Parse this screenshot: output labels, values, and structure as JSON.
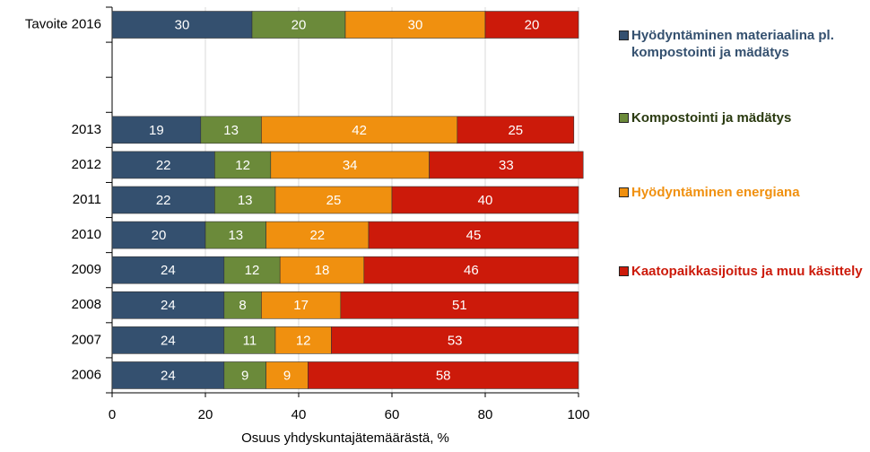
{
  "chart_data": {
    "type": "stacked-barh",
    "xlabel": "Osuus yhdyskuntajätemäärästä, %",
    "categories": [
      "Tavoite 2016",
      null,
      null,
      "2013",
      "2012",
      "2011",
      "2010",
      "2009",
      "2008",
      "2007",
      "2006"
    ],
    "series": [
      {
        "name": "Hyödyntäminen materiaalina pl. kompostointi ja mädätys",
        "color": "#34506f",
        "values": [
          30,
          null,
          null,
          19,
          22,
          22,
          20,
          24,
          24,
          24,
          24
        ]
      },
      {
        "name": "Kompostointi ja mädätys",
        "color": "#6b8a3a",
        "values": [
          20,
          null,
          null,
          13,
          12,
          13,
          13,
          12,
          8,
          11,
          9
        ]
      },
      {
        "name": "Hyödyntäminen energiana",
        "color": "#f0900f",
        "values": [
          30,
          null,
          null,
          42,
          34,
          25,
          22,
          18,
          17,
          12,
          9
        ]
      },
      {
        "name": "Kaatopaikkasijoitus ja muu käsittely",
        "color": "#cc1a0a",
        "values": [
          20,
          null,
          null,
          25,
          33,
          40,
          45,
          46,
          51,
          53,
          58
        ]
      }
    ],
    "xlim": [
      0,
      100
    ],
    "xticks": [
      0,
      20,
      40,
      60,
      80,
      100
    ],
    "grid": true
  }
}
